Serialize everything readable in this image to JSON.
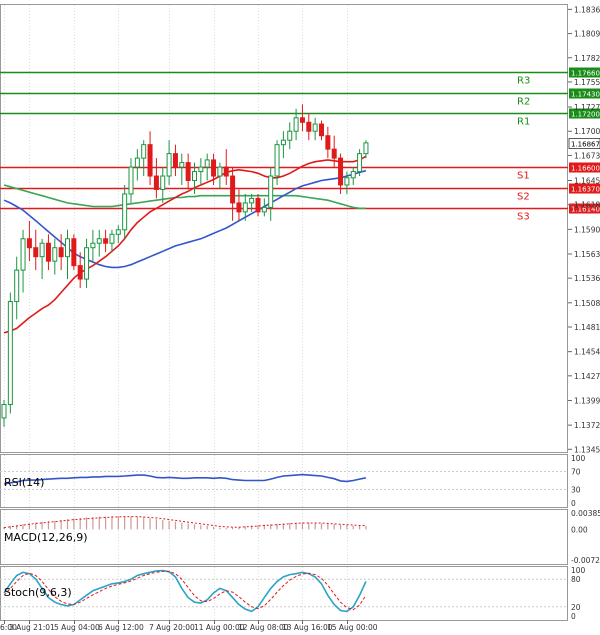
{
  "chart_data": [
    {
      "type": "candlestick",
      "pane": "price",
      "y_ticks": [
        "1.18360",
        "1.18090",
        "1.17820",
        "1.17550",
        "1.17270",
        "1.17000",
        "1.16867",
        "1.16730",
        "1.16450",
        "1.16180",
        "1.15905",
        "1.15630",
        "1.15360",
        "1.15085",
        "1.14815",
        "1.14540",
        "1.14270",
        "1.13995",
        "1.13720",
        "1.13450"
      ],
      "ylim": [
        1.1342,
        1.1842
      ],
      "current_price": "1.16867",
      "levels": [
        {
          "label": "R3",
          "value": 1.1766,
          "tag": "1.17660",
          "color": "#1a8c1a"
        },
        {
          "label": "R2",
          "value": 1.1743,
          "tag": "1.17430",
          "color": "#1a8c1a"
        },
        {
          "label": "R1",
          "value": 1.172,
          "tag": "1.17200",
          "color": "#1a8c1a"
        },
        {
          "label": "S1",
          "value": 1.166,
          "tag": "1.16600",
          "color": "#e01a1a"
        },
        {
          "label": "S2",
          "value": 1.1637,
          "tag": "1.16370",
          "color": "#e01a1a"
        },
        {
          "label": "S3",
          "value": 1.1614,
          "tag": "1.16140",
          "color": "#e01a1a"
        }
      ],
      "level_labels_below": true,
      "colors": {
        "bull": "#1a9641",
        "bear": "#e01a1a",
        "ma_fast": "#e01a1a",
        "ma_mid": "#3355cc",
        "ma_slow": "#3aa655",
        "text": "#333333",
        "grid": "#dddddd"
      },
      "candles": [
        [
          1.138,
          1.14,
          1.137,
          1.1395
        ],
        [
          1.1395,
          1.152,
          1.1385,
          1.151
        ],
        [
          1.151,
          1.156,
          1.149,
          1.1545
        ],
        [
          1.1545,
          1.159,
          1.152,
          1.158
        ],
        [
          1.158,
          1.16,
          1.1555,
          1.157
        ],
        [
          1.157,
          1.159,
          1.1545,
          1.156
        ],
        [
          1.156,
          1.158,
          1.1535,
          1.1575
        ],
        [
          1.1575,
          1.1585,
          1.1545,
          1.1555
        ],
        [
          1.1555,
          1.158,
          1.154,
          1.157
        ],
        [
          1.157,
          1.1585,
          1.1545,
          1.156
        ],
        [
          1.156,
          1.159,
          1.1535,
          1.158
        ],
        [
          1.158,
          1.1585,
          1.1545,
          1.155
        ],
        [
          1.155,
          1.1565,
          1.1525,
          1.1535
        ],
        [
          1.1535,
          1.158,
          1.1525,
          1.157
        ],
        [
          1.157,
          1.159,
          1.1555,
          1.1575
        ],
        [
          1.1575,
          1.159,
          1.156,
          1.158
        ],
        [
          1.158,
          1.159,
          1.1565,
          1.1575
        ],
        [
          1.1575,
          1.159,
          1.1565,
          1.1585
        ],
        [
          1.1585,
          1.1595,
          1.1575,
          1.159
        ],
        [
          1.159,
          1.164,
          1.158,
          1.163
        ],
        [
          1.163,
          1.167,
          1.162,
          1.166
        ],
        [
          1.166,
          1.168,
          1.1645,
          1.167
        ],
        [
          1.167,
          1.169,
          1.165,
          1.1685
        ],
        [
          1.1685,
          1.17,
          1.164,
          1.165
        ],
        [
          1.165,
          1.167,
          1.1625,
          1.1635
        ],
        [
          1.1635,
          1.166,
          1.162,
          1.165
        ],
        [
          1.165,
          1.169,
          1.164,
          1.1675
        ],
        [
          1.1675,
          1.1685,
          1.165,
          1.166
        ],
        [
          1.166,
          1.1675,
          1.164,
          1.1665
        ],
        [
          1.1665,
          1.1675,
          1.1635,
          1.1645
        ],
        [
          1.1645,
          1.1665,
          1.163,
          1.1655
        ],
        [
          1.1655,
          1.167,
          1.164,
          1.166
        ],
        [
          1.166,
          1.1675,
          1.1645,
          1.1668
        ],
        [
          1.1668,
          1.1675,
          1.164,
          1.165
        ],
        [
          1.165,
          1.1665,
          1.1635,
          1.166
        ],
        [
          1.166,
          1.168,
          1.164,
          1.165
        ],
        [
          1.165,
          1.166,
          1.16,
          1.162
        ],
        [
          1.162,
          1.1635,
          1.16,
          1.161
        ],
        [
          1.161,
          1.163,
          1.16,
          1.162
        ],
        [
          1.162,
          1.163,
          1.161,
          1.1625
        ],
        [
          1.1625,
          1.163,
          1.1605,
          1.161
        ],
        [
          1.161,
          1.1625,
          1.1605,
          1.1615
        ],
        [
          1.1615,
          1.166,
          1.16,
          1.165
        ],
        [
          1.165,
          1.169,
          1.164,
          1.1685
        ],
        [
          1.1685,
          1.17,
          1.167,
          1.169
        ],
        [
          1.169,
          1.171,
          1.168,
          1.17
        ],
        [
          1.17,
          1.1725,
          1.169,
          1.1715
        ],
        [
          1.1715,
          1.173,
          1.17,
          1.171
        ],
        [
          1.171,
          1.172,
          1.169,
          1.17
        ],
        [
          1.17,
          1.1715,
          1.169,
          1.1708
        ],
        [
          1.1708,
          1.1712,
          1.169,
          1.1695
        ],
        [
          1.1695,
          1.1705,
          1.167,
          1.168
        ],
        [
          1.168,
          1.1695,
          1.166,
          1.167
        ],
        [
          1.167,
          1.1675,
          1.163,
          1.164
        ],
        [
          1.164,
          1.1655,
          1.163,
          1.1648
        ],
        [
          1.1648,
          1.166,
          1.164,
          1.1655
        ],
        [
          1.1655,
          1.168,
          1.165,
          1.1675
        ],
        [
          1.1675,
          1.169,
          1.167,
          1.1687
        ]
      ],
      "ma_fast": [
        1.1475,
        1.1477,
        1.148,
        1.1486,
        1.1492,
        1.1497,
        1.1502,
        1.1506,
        1.1512,
        1.152,
        1.1528,
        1.1536,
        1.1542,
        1.1546,
        1.155,
        1.1555,
        1.156,
        1.1566,
        1.1572,
        1.158,
        1.159,
        1.1598,
        1.1604,
        1.161,
        1.1614,
        1.1618,
        1.1622,
        1.1626,
        1.163,
        1.1633,
        1.1637,
        1.164,
        1.1643,
        1.1646,
        1.165,
        1.1654,
        1.1656,
        1.1657,
        1.1656,
        1.1655,
        1.1653,
        1.165,
        1.1648,
        1.1648,
        1.165,
        1.1653,
        1.1657,
        1.1661,
        1.1664,
        1.1666,
        1.1667,
        1.1668,
        1.1667,
        1.1666,
        1.1666,
        1.1666,
        1.1668,
        1.1672
      ],
      "ma_mid": [
        1.1623,
        1.162,
        1.1616,
        1.1612,
        1.1606,
        1.16,
        1.1594,
        1.1588,
        1.1582,
        1.1576,
        1.157,
        1.1564,
        1.156,
        1.1557,
        1.1554,
        1.1551,
        1.1549,
        1.1548,
        1.1548,
        1.1549,
        1.1551,
        1.1554,
        1.1557,
        1.156,
        1.1563,
        1.1566,
        1.1569,
        1.1572,
        1.1574,
        1.1576,
        1.1578,
        1.158,
        1.1583,
        1.1586,
        1.1589,
        1.1592,
        1.1596,
        1.16,
        1.1604,
        1.1608,
        1.1612,
        1.1616,
        1.162,
        1.1624,
        1.1628,
        1.1632,
        1.1636,
        1.1639,
        1.1641,
        1.1643,
        1.1645,
        1.1646,
        1.1647,
        1.1648,
        1.165,
        1.1652,
        1.1654,
        1.1656
      ],
      "ma_slow": [
        1.164,
        1.1638,
        1.1636,
        1.1634,
        1.1632,
        1.163,
        1.1628,
        1.1626,
        1.1624,
        1.1622,
        1.162,
        1.1619,
        1.1618,
        1.1617,
        1.1616,
        1.1616,
        1.1616,
        1.1616,
        1.1617,
        1.1618,
        1.1619,
        1.162,
        1.1621,
        1.1622,
        1.1623,
        1.1624,
        1.1625,
        1.1626,
        1.1626,
        1.1627,
        1.1627,
        1.1628,
        1.1628,
        1.1628,
        1.1628,
        1.1628,
        1.1628,
        1.1628,
        1.1628,
        1.1628,
        1.1628,
        1.1628,
        1.1628,
        1.1628,
        1.1628,
        1.1628,
        1.1628,
        1.1627,
        1.1626,
        1.1625,
        1.1624,
        1.1623,
        1.1621,
        1.1619,
        1.1617,
        1.1615,
        1.1614,
        1.1614
      ]
    },
    {
      "type": "line",
      "pane": "rsi",
      "label": "RSI(14)",
      "y_ticks": [
        "100",
        "70",
        "30",
        "0"
      ],
      "ylim": [
        0,
        100
      ],
      "color": "#3355cc",
      "values": [
        42,
        45,
        47,
        50,
        51,
        51,
        52,
        53,
        54,
        55,
        55,
        56,
        57,
        57,
        58,
        58,
        59,
        59,
        59,
        60,
        61,
        62,
        62,
        60,
        57,
        56,
        57,
        56,
        55,
        55,
        56,
        56,
        56,
        55,
        56,
        55,
        52,
        51,
        50,
        50,
        50,
        50,
        53,
        57,
        60,
        61,
        62,
        63,
        62,
        61,
        60,
        57,
        54,
        49,
        48,
        50,
        53,
        56
      ]
    },
    {
      "type": "bar",
      "pane": "macd",
      "label": "MACD(12,26,9)",
      "y_ticks": [
        "0.003853",
        "0.00",
        "-0.007204"
      ],
      "ylim": [
        -0.0072,
        0.00385
      ],
      "color": "#cc9999",
      "signal_color": "#e01a1a",
      "values": [
        0.0006,
        0.0008,
        0.001,
        0.0012,
        0.0014,
        0.0016,
        0.0018,
        0.0019,
        0.002,
        0.0022,
        0.0024,
        0.0026,
        0.0027,
        0.0028,
        0.0029,
        0.003,
        0.003,
        0.0031,
        0.0031,
        0.003,
        0.003,
        0.0029,
        0.0028,
        0.0026,
        0.0024,
        0.0022,
        0.002,
        0.0018,
        0.0016,
        0.0014,
        0.0012,
        0.001,
        0.0008,
        0.0006,
        0.0004,
        0.0003,
        0.0004,
        0.0005,
        0.0007,
        0.0009,
        0.001,
        0.0011,
        0.0012,
        0.0013,
        0.0014,
        0.0015,
        0.0016,
        0.0016,
        0.0016,
        0.0015,
        0.0014,
        0.0013,
        0.0012,
        0.0011,
        0.001,
        0.0009,
        0.0008,
        0.0008
      ],
      "signal": [
        0.0004,
        0.0006,
        0.0008,
        0.001,
        0.0012,
        0.0014,
        0.0015,
        0.0017,
        0.0018,
        0.002,
        0.0021,
        0.0023,
        0.0024,
        0.0025,
        0.0026,
        0.0027,
        0.0028,
        0.0029,
        0.0029,
        0.003,
        0.003,
        0.003,
        0.0029,
        0.0028,
        0.0027,
        0.0025,
        0.0023,
        0.0021,
        0.0019,
        0.0017,
        0.0015,
        0.0013,
        0.0011,
        0.0009,
        0.0007,
        0.0006,
        0.0005,
        0.0005,
        0.0006,
        0.0007,
        0.0008,
        0.0009,
        0.001,
        0.0011,
        0.0012,
        0.0013,
        0.0014,
        0.0015,
        0.0015,
        0.0015,
        0.0015,
        0.0014,
        0.0013,
        0.0012,
        0.0011,
        0.001,
        0.0009,
        0.0009
      ]
    },
    {
      "type": "line",
      "pane": "stoch",
      "label": "Stoch(9,6,3)",
      "y_ticks": [
        "100",
        "80",
        "20",
        "0"
      ],
      "ylim": [
        0,
        100
      ],
      "main_color": "#2aa3c7",
      "signal_color": "#e01a1a",
      "main": [
        50,
        70,
        88,
        95,
        92,
        80,
        60,
        40,
        30,
        25,
        22,
        25,
        35,
        45,
        55,
        60,
        65,
        70,
        72,
        75,
        80,
        88,
        92,
        95,
        98,
        99,
        96,
        85,
        60,
        40,
        30,
        28,
        35,
        50,
        60,
        55,
        40,
        25,
        15,
        10,
        20,
        40,
        60,
        75,
        85,
        90,
        92,
        95,
        92,
        85,
        70,
        45,
        25,
        12,
        10,
        20,
        45,
        75
      ],
      "signal": [
        45,
        60,
        75,
        88,
        93,
        88,
        75,
        58,
        42,
        32,
        26,
        25,
        30,
        38,
        46,
        53,
        60,
        65,
        69,
        72,
        76,
        82,
        88,
        92,
        95,
        97,
        97,
        92,
        80,
        62,
        44,
        33,
        31,
        38,
        48,
        55,
        52,
        42,
        30,
        20,
        16,
        22,
        36,
        52,
        66,
        78,
        86,
        91,
        93,
        90,
        82,
        67,
        48,
        30,
        18,
        14,
        24,
        45
      ]
    }
  ],
  "x_labels": [
    "6:00",
    "3 Aug 21:01",
    "5 Aug 04:00",
    "6 Aug 12:00",
    "7 Aug 20:00",
    "11 Aug 00:00",
    "12 Aug 08:00",
    "13 Aug 16:00",
    "15 Aug 00:00"
  ],
  "x_label_candles": [
    0,
    4,
    11,
    18,
    26,
    33,
    40,
    47,
    54
  ]
}
